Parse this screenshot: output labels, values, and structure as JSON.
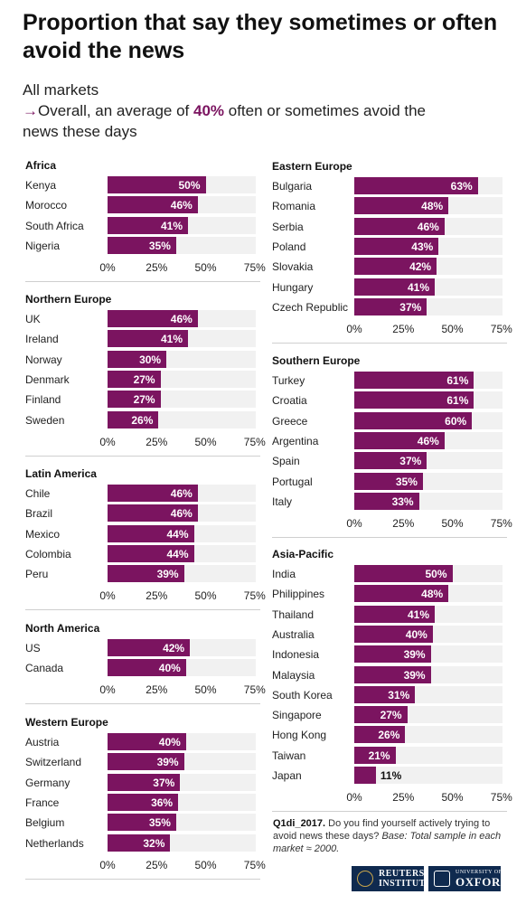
{
  "title": "Proportion that say they sometimes or often avoid the news",
  "subtitle": {
    "scope": "All markets",
    "arrow": "→",
    "overall_prefix": "Overall, an average of ",
    "overall_value": "40%",
    "overall_suffix": " often or sometimes avoid the news these days"
  },
  "note": {
    "code": "Q1di_2017.",
    "question": " Do you find yourself actively trying to avoid news these days? ",
    "base": "Base: Total sample in each market ≈ 2000."
  },
  "logos": {
    "reuters_line1": "REUTERS",
    "reuters_line2": "INSTITUTE",
    "oxford_small": "UNIVERSITY OF",
    "oxford_big": "OXFORD"
  },
  "colors": {
    "bar": "#7b1460",
    "track": "#f1f1f1",
    "accent": "#7b1460"
  },
  "chart_data": [
    {
      "type": "bar",
      "title": "Africa",
      "categories": [
        "Kenya",
        "Morocco",
        "South Africa",
        "Nigeria"
      ],
      "values": [
        50,
        46,
        41,
        35
      ],
      "labels": [
        "50%",
        "46%",
        "41%",
        "35%"
      ],
      "xlim": [
        0,
        100
      ],
      "ticks": [
        "0%",
        "25%",
        "50%",
        "75%"
      ]
    },
    {
      "type": "bar",
      "title": "Northern Europe",
      "categories": [
        "UK",
        "Ireland",
        "Norway",
        "Denmark",
        "Finland",
        "Sweden"
      ],
      "values": [
        46,
        41,
        30,
        27,
        27,
        26
      ],
      "labels": [
        "46%",
        "41%",
        "30%",
        "27%",
        "27%",
        "26%"
      ],
      "xlim": [
        0,
        100
      ],
      "ticks": [
        "0%",
        "25%",
        "50%",
        "75%"
      ]
    },
    {
      "type": "bar",
      "title": "Latin America",
      "categories": [
        "Chile",
        "Brazil",
        "Mexico",
        "Colombia",
        "Peru"
      ],
      "values": [
        46,
        46,
        44,
        44,
        39
      ],
      "labels": [
        "46%",
        "46%",
        "44%",
        "44%",
        "39%"
      ],
      "xlim": [
        0,
        100
      ],
      "ticks": [
        "0%",
        "25%",
        "50%",
        "75%"
      ]
    },
    {
      "type": "bar",
      "title": "North America",
      "categories": [
        "US",
        "Canada"
      ],
      "values": [
        42,
        40
      ],
      "labels": [
        "42%",
        "40%"
      ],
      "xlim": [
        0,
        100
      ],
      "ticks": [
        "0%",
        "25%",
        "50%",
        "75%"
      ]
    },
    {
      "type": "bar",
      "title": "Western Europe",
      "categories": [
        "Austria",
        "Switzerland",
        "Germany",
        "France",
        "Belgium",
        "Netherlands"
      ],
      "values": [
        40,
        39,
        37,
        36,
        35,
        32
      ],
      "labels": [
        "40%",
        "39%",
        "37%",
        "36%",
        "35%",
        "32%"
      ],
      "xlim": [
        0,
        100
      ],
      "ticks": [
        "0%",
        "25%",
        "50%",
        "75%"
      ]
    },
    {
      "type": "bar",
      "title": "Eastern Europe",
      "categories": [
        "Bulgaria",
        "Romania",
        "Serbia",
        "Poland",
        "Slovakia",
        "Hungary",
        "Czech Republic"
      ],
      "values": [
        63,
        48,
        46,
        43,
        42,
        41,
        37
      ],
      "labels": [
        "63%",
        "48%",
        "46%",
        "43%",
        "42%",
        "41%",
        "37%"
      ],
      "xlim": [
        0,
        100
      ],
      "ticks": [
        "0%",
        "25%",
        "50%",
        "75%"
      ]
    },
    {
      "type": "bar",
      "title": "Southern Europe",
      "categories": [
        "Turkey",
        "Croatia",
        "Greece",
        "Argentina",
        "Spain",
        "Portugal",
        "Italy"
      ],
      "values": [
        61,
        61,
        60,
        46,
        37,
        35,
        33
      ],
      "labels": [
        "61%",
        "61%",
        "60%",
        "46%",
        "37%",
        "35%",
        "33%"
      ],
      "xlim": [
        0,
        100
      ],
      "ticks": [
        "0%",
        "25%",
        "50%",
        "75%"
      ]
    },
    {
      "type": "bar",
      "title": "Asia-Pacific",
      "categories": [
        "India",
        "Philippines",
        "Thailand",
        "Australia",
        "Indonesia",
        "Malaysia",
        "South Korea",
        "Singapore",
        "Hong Kong",
        "Taiwan",
        "Japan"
      ],
      "values": [
        50,
        48,
        41,
        40,
        39,
        39,
        31,
        27,
        26,
        21,
        11
      ],
      "labels": [
        "50%",
        "48%",
        "41%",
        "40%",
        "39%",
        "39%",
        "31%",
        "27%",
        "26%",
        "21%",
        "11%"
      ],
      "xlim": [
        0,
        100
      ],
      "ticks": [
        "0%",
        "25%",
        "50%",
        "75%"
      ]
    }
  ]
}
